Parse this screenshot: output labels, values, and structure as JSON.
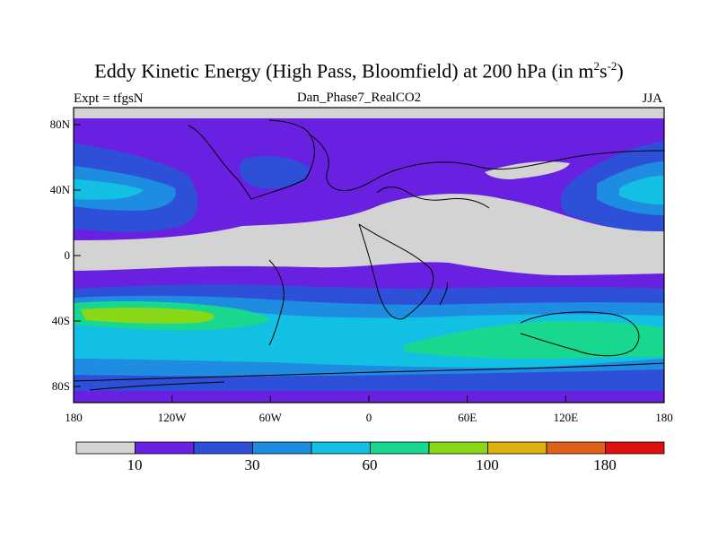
{
  "title": {
    "main": "Eddy Kinetic Energy (High Pass, Bloomfield) at 200 hPa (in m",
    "sup1": "2",
    "mid": "s",
    "sup2": "-2",
    "end": ")"
  },
  "subtitle": "Dan_Phase7_RealCO2",
  "experiment_label": "Expt = tfgsN",
  "season": "JJA",
  "axes": {
    "y_ticks": [
      "80N",
      "40N",
      "0",
      "40S",
      "80S"
    ],
    "x_ticks": [
      "180",
      "120W",
      "60W",
      "0",
      "60E",
      "120E",
      "180"
    ]
  },
  "colorbar": {
    "colors": [
      "#d3d3d3",
      "#6a20e0",
      "#2e50d8",
      "#1e8ce0",
      "#12c0e4",
      "#18d890",
      "#88d818",
      "#e0b010",
      "#e06018",
      "#e01010"
    ],
    "labels": [
      "10",
      "30",
      "60",
      "100",
      "180"
    ]
  },
  "chart_data": {
    "type": "heatmap",
    "title": "Eddy Kinetic Energy (High Pass, Bloomfield) at 200 hPa (in m2s-2)",
    "subtitle": "Dan_Phase7_RealCO2",
    "x_range": [
      -180,
      180
    ],
    "y_range": [
      -90,
      90
    ],
    "x_ticks": [
      "180",
      "120W",
      "60W",
      "0",
      "60E",
      "120E",
      "180"
    ],
    "y_ticks": [
      "80N",
      "40N",
      "0",
      "40S",
      "80S"
    ],
    "colorbar_labels": [
      "10",
      "30",
      "60",
      "100",
      "180"
    ]
  }
}
